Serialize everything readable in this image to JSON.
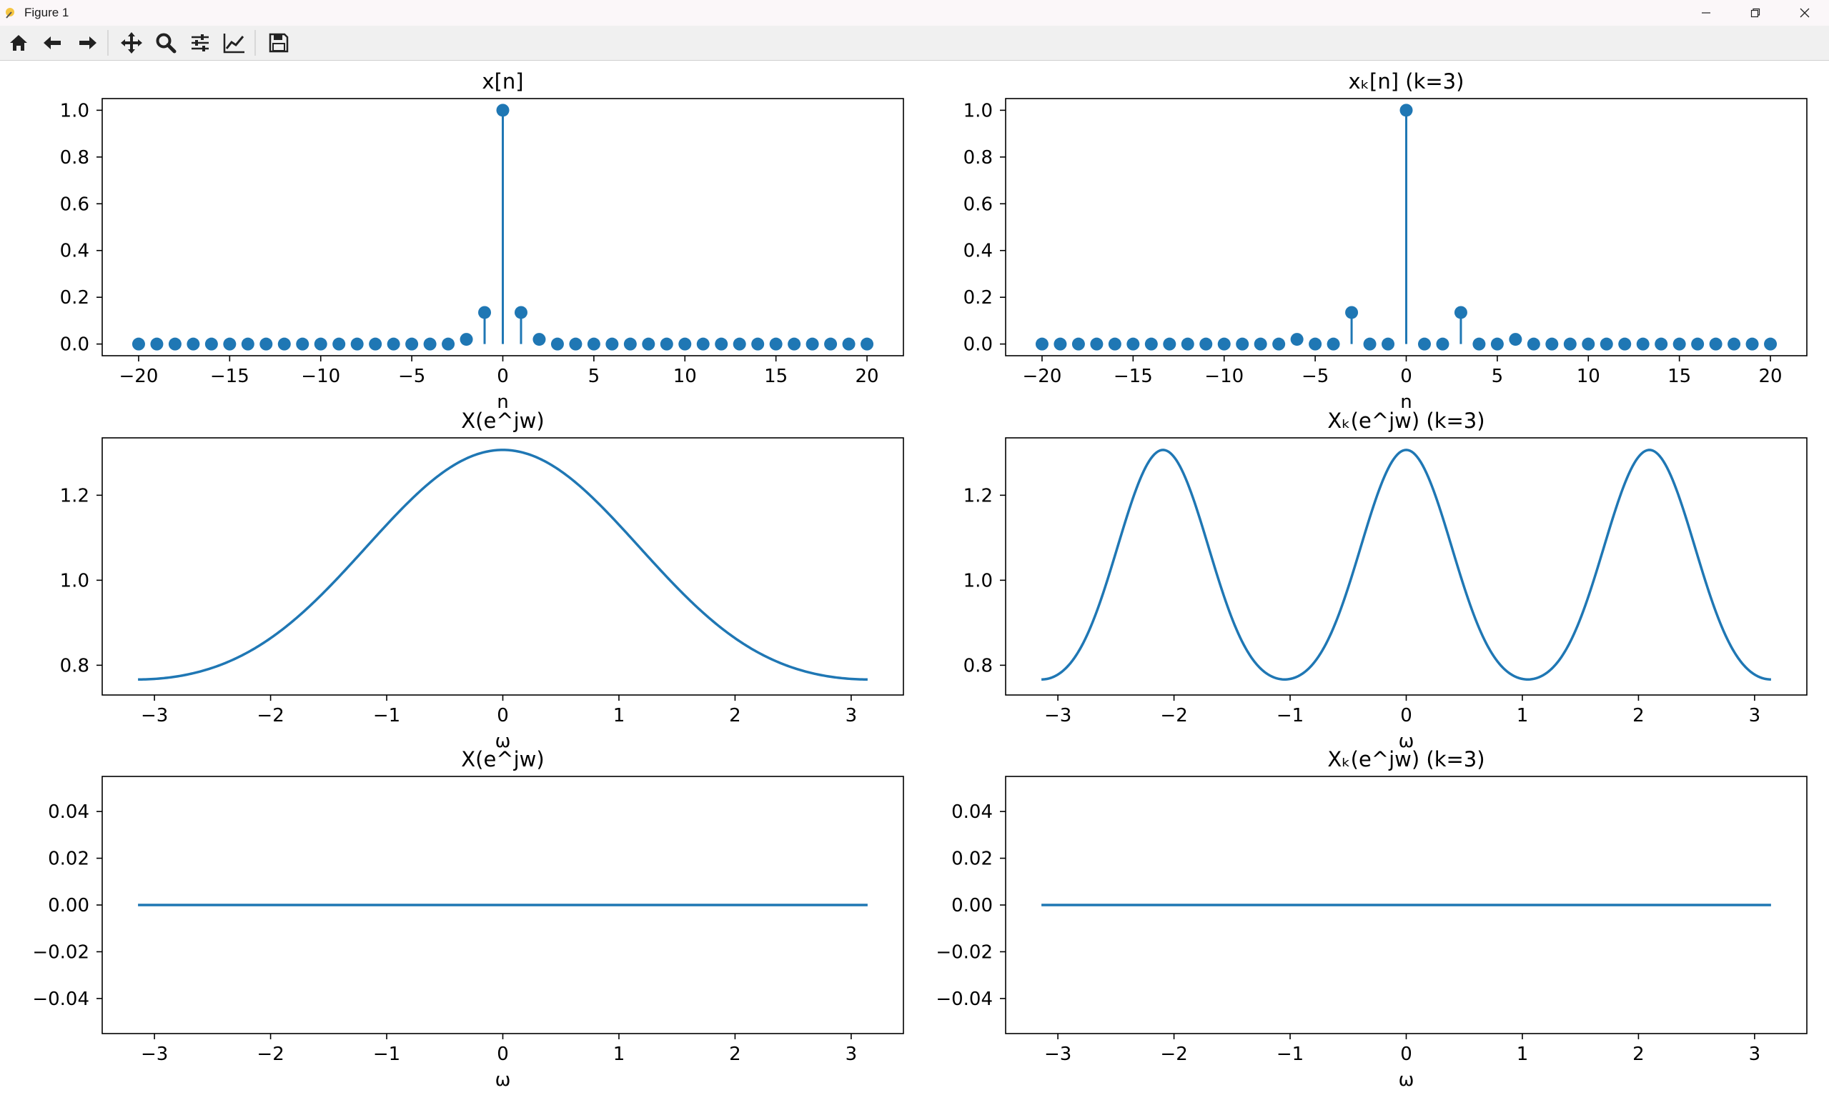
{
  "window": {
    "title": "Figure 1"
  },
  "toolbar": {
    "buttons": [
      {
        "name": "home-button",
        "icon": "home-icon"
      },
      {
        "name": "back-button",
        "icon": "arrow-left-icon"
      },
      {
        "name": "forward-button",
        "icon": "arrow-right-icon"
      },
      {
        "name": "pan-button",
        "icon": "move-icon"
      },
      {
        "name": "zoom-button",
        "icon": "magnifier-icon"
      },
      {
        "name": "subplots-button",
        "icon": "sliders-icon"
      },
      {
        "name": "edit-axes-button",
        "icon": "line-chart-icon"
      },
      {
        "name": "save-button",
        "icon": "floppy-disk-icon"
      }
    ]
  },
  "colors": {
    "series": "#1f77b4",
    "axes": "#000000",
    "background": "#ffffff"
  },
  "chart_data": [
    {
      "type": "stem",
      "title": "x[n]",
      "xlabel": "n",
      "x_range": [
        -20,
        20
      ],
      "xlim": [
        -22,
        22
      ],
      "ylim": [
        -0.05,
        1.05
      ],
      "xticks": [
        -20,
        -15,
        -10,
        -5,
        0,
        5,
        10,
        15,
        20
      ],
      "xtick_labels": [
        "−20",
        "−15",
        "−10",
        "−5",
        "0",
        "5",
        "10",
        "15",
        "20"
      ],
      "yticks": [
        0,
        0.2,
        0.4,
        0.6,
        0.8,
        1.0
      ],
      "ytick_labels": [
        "0.0",
        "0.2",
        "0.4",
        "0.6",
        "0.8",
        "1.0"
      ],
      "nonzero_points": [
        [
          -2,
          0.02
        ],
        [
          -1,
          0.135
        ],
        [
          0,
          1.0
        ],
        [
          1,
          0.135
        ],
        [
          2,
          0.02
        ]
      ]
    },
    {
      "type": "stem",
      "title": "xₖ[n] (k=3)",
      "xlabel": "n",
      "x_range": [
        -20,
        20
      ],
      "xlim": [
        -22,
        22
      ],
      "ylim": [
        -0.05,
        1.05
      ],
      "xticks": [
        -20,
        -15,
        -10,
        -5,
        0,
        5,
        10,
        15,
        20
      ],
      "xtick_labels": [
        "−20",
        "−15",
        "−10",
        "−5",
        "0",
        "5",
        "10",
        "15",
        "20"
      ],
      "yticks": [
        0,
        0.2,
        0.4,
        0.6,
        0.8,
        1.0
      ],
      "ytick_labels": [
        "0.0",
        "0.2",
        "0.4",
        "0.6",
        "0.8",
        "1.0"
      ],
      "nonzero_points": [
        [
          -6,
          0.02
        ],
        [
          -3,
          0.135
        ],
        [
          0,
          1.0
        ],
        [
          3,
          0.135
        ],
        [
          6,
          0.02
        ]
      ]
    },
    {
      "type": "line",
      "title": "X(e^jw)",
      "xlabel": "ω",
      "x_range": [
        -3.1416,
        3.1416
      ],
      "xlim": [
        -3.45,
        3.45
      ],
      "ylim": [
        0.73,
        1.335
      ],
      "xticks": [
        -3,
        -2,
        -1,
        0,
        1,
        2,
        3
      ],
      "xtick_labels": [
        "−3",
        "−2",
        "−1",
        "0",
        "1",
        "2",
        "3"
      ],
      "yticks": [
        0.8,
        1.0,
        1.2
      ],
      "ytick_labels": [
        "0.8",
        "1.0",
        "1.2"
      ],
      "curve": {
        "kind": "dtft",
        "k": 1,
        "coeffs": [
          [
            0,
            1.0
          ],
          [
            1,
            0.135
          ],
          [
            2,
            0.0183
          ]
        ]
      }
    },
    {
      "type": "line",
      "title": "Xₖ(e^jw)  (k=3)",
      "xlabel": "ω",
      "x_range": [
        -3.1416,
        3.1416
      ],
      "xlim": [
        -3.45,
        3.45
      ],
      "ylim": [
        0.73,
        1.335
      ],
      "xticks": [
        -3,
        -2,
        -1,
        0,
        1,
        2,
        3
      ],
      "xtick_labels": [
        "−3",
        "−2",
        "−1",
        "0",
        "1",
        "2",
        "3"
      ],
      "yticks": [
        0.8,
        1.0,
        1.2
      ],
      "ytick_labels": [
        "0.8",
        "1.0",
        "1.2"
      ],
      "curve": {
        "kind": "dtft",
        "k": 3,
        "coeffs": [
          [
            0,
            1.0
          ],
          [
            1,
            0.135
          ],
          [
            2,
            0.0183
          ]
        ]
      }
    },
    {
      "type": "line",
      "title": "X(e^jw)",
      "xlabel": "ω",
      "x_range": [
        -3.1416,
        3.1416
      ],
      "xlim": [
        -3.45,
        3.45
      ],
      "ylim": [
        -0.055,
        0.055
      ],
      "xticks": [
        -3,
        -2,
        -1,
        0,
        1,
        2,
        3
      ],
      "xtick_labels": [
        "−3",
        "−2",
        "−1",
        "0",
        "1",
        "2",
        "3"
      ],
      "yticks": [
        -0.04,
        -0.02,
        0.0,
        0.02,
        0.04
      ],
      "ytick_labels": [
        "−0.04",
        "−0.02",
        "0.00",
        "0.02",
        "0.04"
      ],
      "curve": {
        "kind": "constant",
        "value": 0
      }
    },
    {
      "type": "line",
      "title": "Xₖ(e^jw) (k=3)",
      "xlabel": "ω",
      "x_range": [
        -3.1416,
        3.1416
      ],
      "xlim": [
        -3.45,
        3.45
      ],
      "ylim": [
        -0.055,
        0.055
      ],
      "xticks": [
        -3,
        -2,
        -1,
        0,
        1,
        2,
        3
      ],
      "xtick_labels": [
        "−3",
        "−2",
        "−1",
        "0",
        "1",
        "2",
        "3"
      ],
      "yticks": [
        -0.04,
        -0.02,
        0.0,
        0.02,
        0.04
      ],
      "ytick_labels": [
        "−0.04",
        "−0.02",
        "0.00",
        "0.02",
        "0.04"
      ],
      "curve": {
        "kind": "constant",
        "value": 0
      }
    }
  ]
}
